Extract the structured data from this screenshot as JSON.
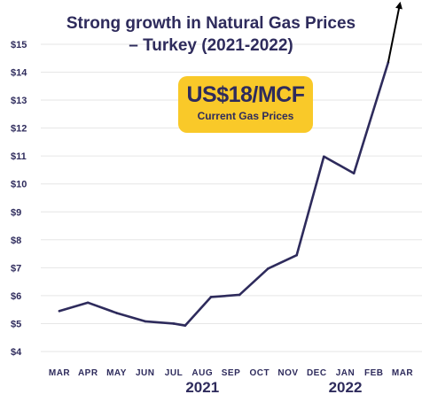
{
  "colors": {
    "line": "#2e2b5c",
    "badge": "#f9c929",
    "text": "#2e2b5c",
    "grid": "#e6e6e6",
    "arrow": "#000000"
  },
  "chart_data": {
    "type": "line",
    "title_lines": [
      "Strong growth in Natural Gas Prices",
      "– Turkey (2021-2022)"
    ],
    "categories": [
      "MAR",
      "APR",
      "MAY",
      "JUN",
      "JUL",
      "AUG",
      "SEP",
      "OCT",
      "NOV",
      "DEC",
      "JAN",
      "FEB",
      "MAR"
    ],
    "y_ticks": [
      "$4",
      "$5",
      "$6",
      "$7",
      "$8",
      "$9",
      "$10",
      "$11",
      "$12",
      "$13",
      "$14",
      "$15"
    ],
    "ylim": [
      4,
      15
    ],
    "grid": true,
    "year_labels": [
      {
        "label": "2021",
        "category_index": 5
      },
      {
        "label": "2022",
        "category_index": 10
      }
    ],
    "points": [
      {
        "x": 0.0,
        "y": 5.45
      },
      {
        "x": 1.0,
        "y": 5.75
      },
      {
        "x": 2.0,
        "y": 5.38
      },
      {
        "x": 3.0,
        "y": 5.08
      },
      {
        "x": 4.0,
        "y": 5.0
      },
      {
        "x": 4.4,
        "y": 4.93
      },
      {
        "x": 5.3,
        "y": 5.95
      },
      {
        "x": 6.3,
        "y": 6.03
      },
      {
        "x": 7.3,
        "y": 6.97
      },
      {
        "x": 8.3,
        "y": 7.45
      },
      {
        "x": 9.25,
        "y": 10.98
      },
      {
        "x": 10.3,
        "y": 10.38
      },
      {
        "x": 11.5,
        "y": 14.35
      }
    ],
    "arrow_to": {
      "x": 11.9,
      "y": 16.4
    },
    "annotation": {
      "value": "US$18/MCF",
      "label": "Current Gas Prices"
    }
  }
}
